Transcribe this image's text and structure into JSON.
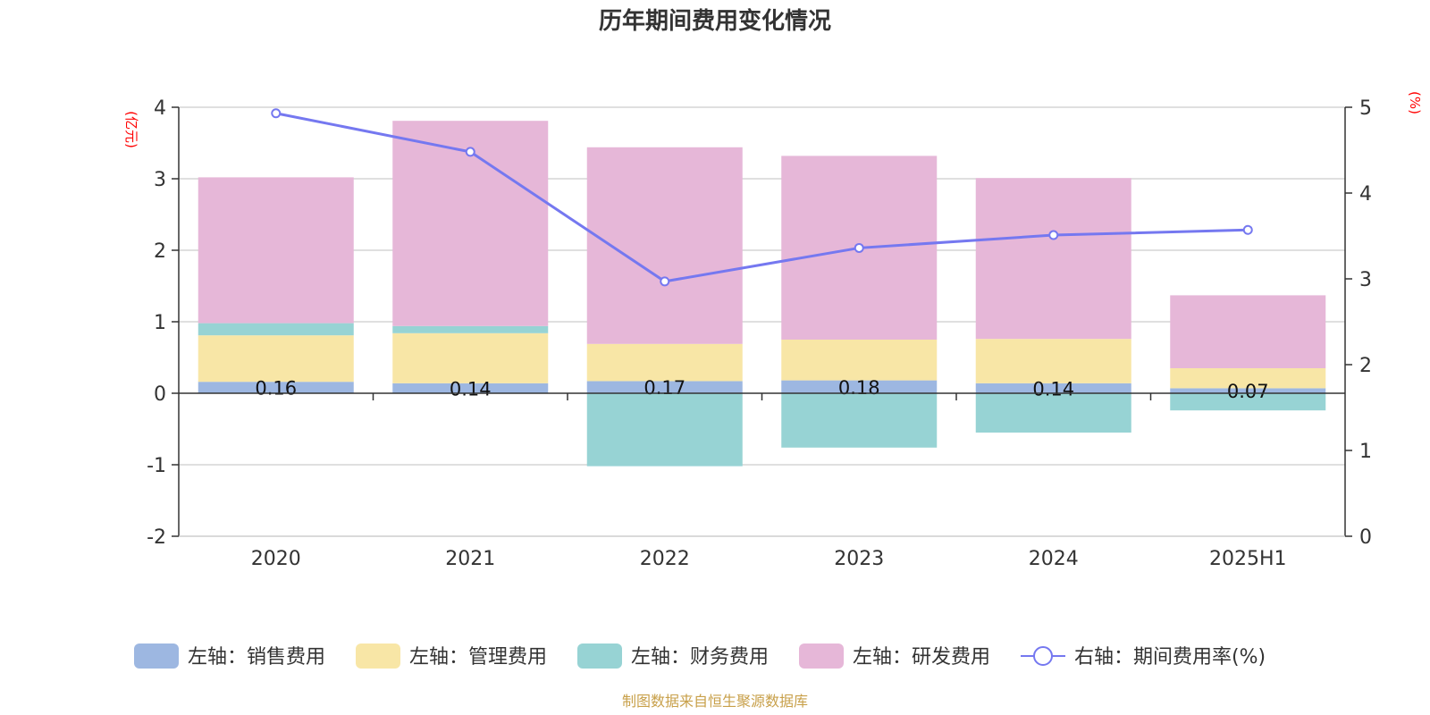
{
  "chart_data": {
    "type": "bar",
    "title": "历年期间费用变化情况",
    "left_axis_unit": "(亿元)",
    "right_axis_unit": "(%)",
    "categories": [
      "2020",
      "2021",
      "2022",
      "2023",
      "2024",
      "2025H1"
    ],
    "left_ylim": [
      -2,
      4
    ],
    "left_ticks": [
      4,
      3,
      2,
      1,
      0,
      -1,
      -2
    ],
    "right_ylim": [
      0,
      5
    ],
    "right_ticks": [
      5,
      4,
      3,
      2,
      1,
      0
    ],
    "grid": true,
    "stacked": true,
    "series": [
      {
        "name": "左轴：销售费用",
        "axis": "left",
        "color": "#9db7e1",
        "values": [
          0.16,
          0.14,
          0.17,
          0.18,
          0.14,
          0.07
        ],
        "labels": [
          "0.16",
          "0.14",
          "0.17",
          "0.18",
          "0.14",
          "0.07"
        ]
      },
      {
        "name": "左轴：管理费用",
        "axis": "left",
        "color": "#f8e6a6",
        "values": [
          0.65,
          0.7,
          0.52,
          0.57,
          0.62,
          0.28
        ]
      },
      {
        "name": "左轴：财务费用",
        "axis": "left",
        "color": "#97d3d4",
        "values": [
          0.17,
          0.1,
          -1.02,
          -0.76,
          -0.55,
          -0.24
        ]
      },
      {
        "name": "左轴：研发费用",
        "axis": "left",
        "color": "#e6b7d8",
        "values": [
          2.04,
          2.87,
          2.75,
          2.57,
          2.25,
          1.02
        ]
      },
      {
        "name": "右轴：期间费用率(%)",
        "axis": "right",
        "type": "line",
        "color": "#7578f0",
        "values": [
          4.93,
          4.48,
          2.97,
          3.36,
          3.51,
          3.57
        ]
      }
    ],
    "legend_position": "bottom",
    "source": "制图数据来自恒生聚源数据库"
  }
}
